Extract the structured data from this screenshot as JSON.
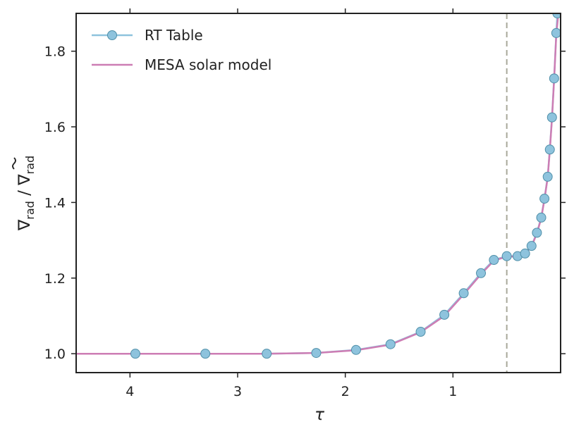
{
  "chart_data": {
    "type": "line",
    "xlabel": "τ",
    "ylabel": "∇rad / ∇̃rad",
    "ylabel_parts": {
      "nabla1": "∇",
      "sub1": "rad",
      "slash": " / ",
      "nabla2": "∇",
      "sub2": "rad"
    },
    "xlim": [
      4.5,
      0.0
    ],
    "ylim": [
      0.95,
      1.9
    ],
    "x_inverted": true,
    "grid": false,
    "legend_position": "upper-left",
    "x_ticks": [
      4,
      3,
      2,
      1
    ],
    "x_tick_labels": [
      "4",
      "3",
      "2",
      "1"
    ],
    "y_ticks": [
      1.0,
      1.2,
      1.4,
      1.6,
      1.8
    ],
    "y_tick_labels": [
      "1.0",
      "1.2",
      "1.4",
      "1.6",
      "1.8"
    ],
    "vline": {
      "x": 0.5,
      "style": "dashed",
      "color": "#a8a89a"
    },
    "series": [
      {
        "name": "RT Table",
        "kind": "markers-line",
        "color": "#8ec3dd",
        "edge_color": "#4f8fa8",
        "x": [
          3.95,
          3.3,
          2.73,
          2.27,
          1.9,
          1.58,
          1.3,
          1.08,
          0.9,
          0.74,
          0.62,
          0.5,
          0.4,
          0.33,
          0.27,
          0.22,
          0.18,
          0.15,
          0.12,
          0.1,
          0.08,
          0.06,
          0.04,
          0.03
        ],
        "y": [
          1.0,
          1.0,
          1.0,
          1.002,
          1.01,
          1.025,
          1.058,
          1.103,
          1.16,
          1.213,
          1.248,
          1.258,
          1.258,
          1.265,
          1.285,
          1.32,
          1.36,
          1.41,
          1.468,
          1.54,
          1.625,
          1.728,
          1.848,
          1.9
        ]
      },
      {
        "name": "MESA solar model",
        "kind": "line",
        "color": "#cd7db4",
        "x": [
          4.5,
          3.95,
          3.3,
          2.73,
          2.27,
          1.9,
          1.58,
          1.3,
          1.08,
          0.9,
          0.74,
          0.62,
          0.5,
          0.4,
          0.33,
          0.27,
          0.22,
          0.18,
          0.15,
          0.12,
          0.1,
          0.08,
          0.06,
          0.04,
          0.02
        ],
        "y": [
          1.0,
          1.0,
          1.0,
          1.0,
          1.002,
          1.009,
          1.024,
          1.057,
          1.1,
          1.157,
          1.21,
          1.246,
          1.257,
          1.257,
          1.264,
          1.284,
          1.318,
          1.358,
          1.408,
          1.466,
          1.538,
          1.622,
          1.725,
          1.845,
          1.9
        ]
      }
    ],
    "colors": {
      "axes": "#222222",
      "background": "#ffffff"
    }
  }
}
